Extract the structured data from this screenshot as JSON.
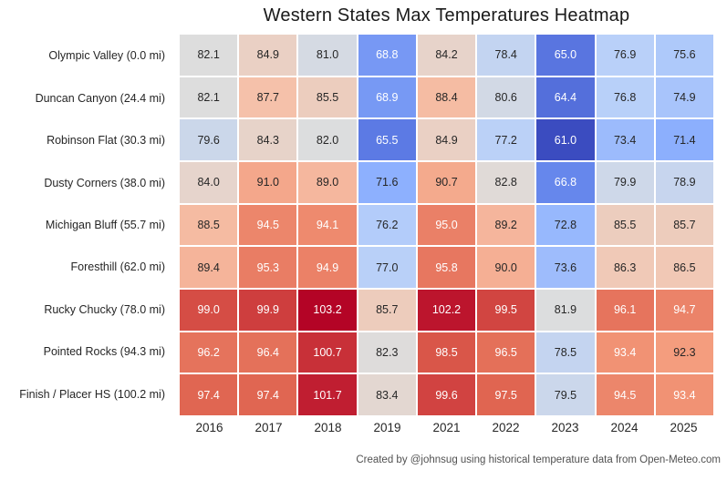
{
  "chart_data": {
    "type": "heatmap",
    "title": "Western States Max Temperatures Heatmap",
    "footer": "Created by @johnsug using historical temperature data from Open-Meteo.com",
    "x_labels": [
      "2016",
      "2017",
      "2018",
      "2019",
      "2021",
      "2022",
      "2023",
      "2024",
      "2025"
    ],
    "y_labels": [
      "Olympic Valley (0.0 mi)",
      "Duncan Canyon (24.4 mi)",
      "Robinson Flat (30.3 mi)",
      "Dusty Corners (38.0 mi)",
      "Michigan Bluff (55.7 mi)",
      "Foresthill (62.0 mi)",
      "Rucky Chucky (78.0 mi)",
      "Pointed Rocks (94.3 mi)",
      "Finish / Placer HS (100.2 mi)"
    ],
    "values": [
      [
        82.1,
        84.9,
        81.0,
        68.8,
        84.2,
        78.4,
        65.0,
        76.9,
        75.6
      ],
      [
        82.1,
        87.7,
        85.5,
        68.9,
        88.4,
        80.6,
        64.4,
        76.8,
        74.9
      ],
      [
        79.6,
        84.3,
        82.0,
        65.5,
        84.9,
        77.2,
        61.0,
        73.4,
        71.4
      ],
      [
        84.0,
        91.0,
        89.0,
        71.6,
        90.7,
        82.8,
        66.8,
        79.9,
        78.9
      ],
      [
        88.5,
        94.5,
        94.1,
        76.2,
        95.0,
        89.2,
        72.8,
        85.5,
        85.7
      ],
      [
        89.4,
        95.3,
        94.9,
        77.0,
        95.8,
        90.0,
        73.6,
        86.3,
        86.5
      ],
      [
        99.0,
        99.9,
        103.2,
        85.7,
        102.2,
        99.5,
        81.9,
        96.1,
        94.7
      ],
      [
        96.2,
        96.4,
        100.7,
        82.3,
        98.5,
        96.5,
        78.5,
        93.4,
        92.3
      ],
      [
        97.4,
        97.4,
        101.7,
        83.4,
        99.6,
        97.5,
        79.5,
        94.5,
        93.4
      ]
    ],
    "value_decimals": 1,
    "vmin": 61.0,
    "vmax": 103.2,
    "colormap": "coolwarm",
    "colormap_stops_rgb": [
      [
        59,
        76,
        192
      ],
      [
        98,
        130,
        234
      ],
      [
        141,
        176,
        254
      ],
      [
        184,
        208,
        249
      ],
      [
        221,
        221,
        221
      ],
      [
        245,
        196,
        173
      ],
      [
        244,
        154,
        123
      ],
      [
        222,
        96,
        77
      ],
      [
        180,
        4,
        38
      ]
    ],
    "cell_text_dark": "#262626",
    "cell_text_light": "#ffffff",
    "grid_line_color": "#ffffff",
    "legend_position": "none",
    "axes": {
      "x_ticks_position": "bottom",
      "y_ticks_position": "left"
    }
  }
}
